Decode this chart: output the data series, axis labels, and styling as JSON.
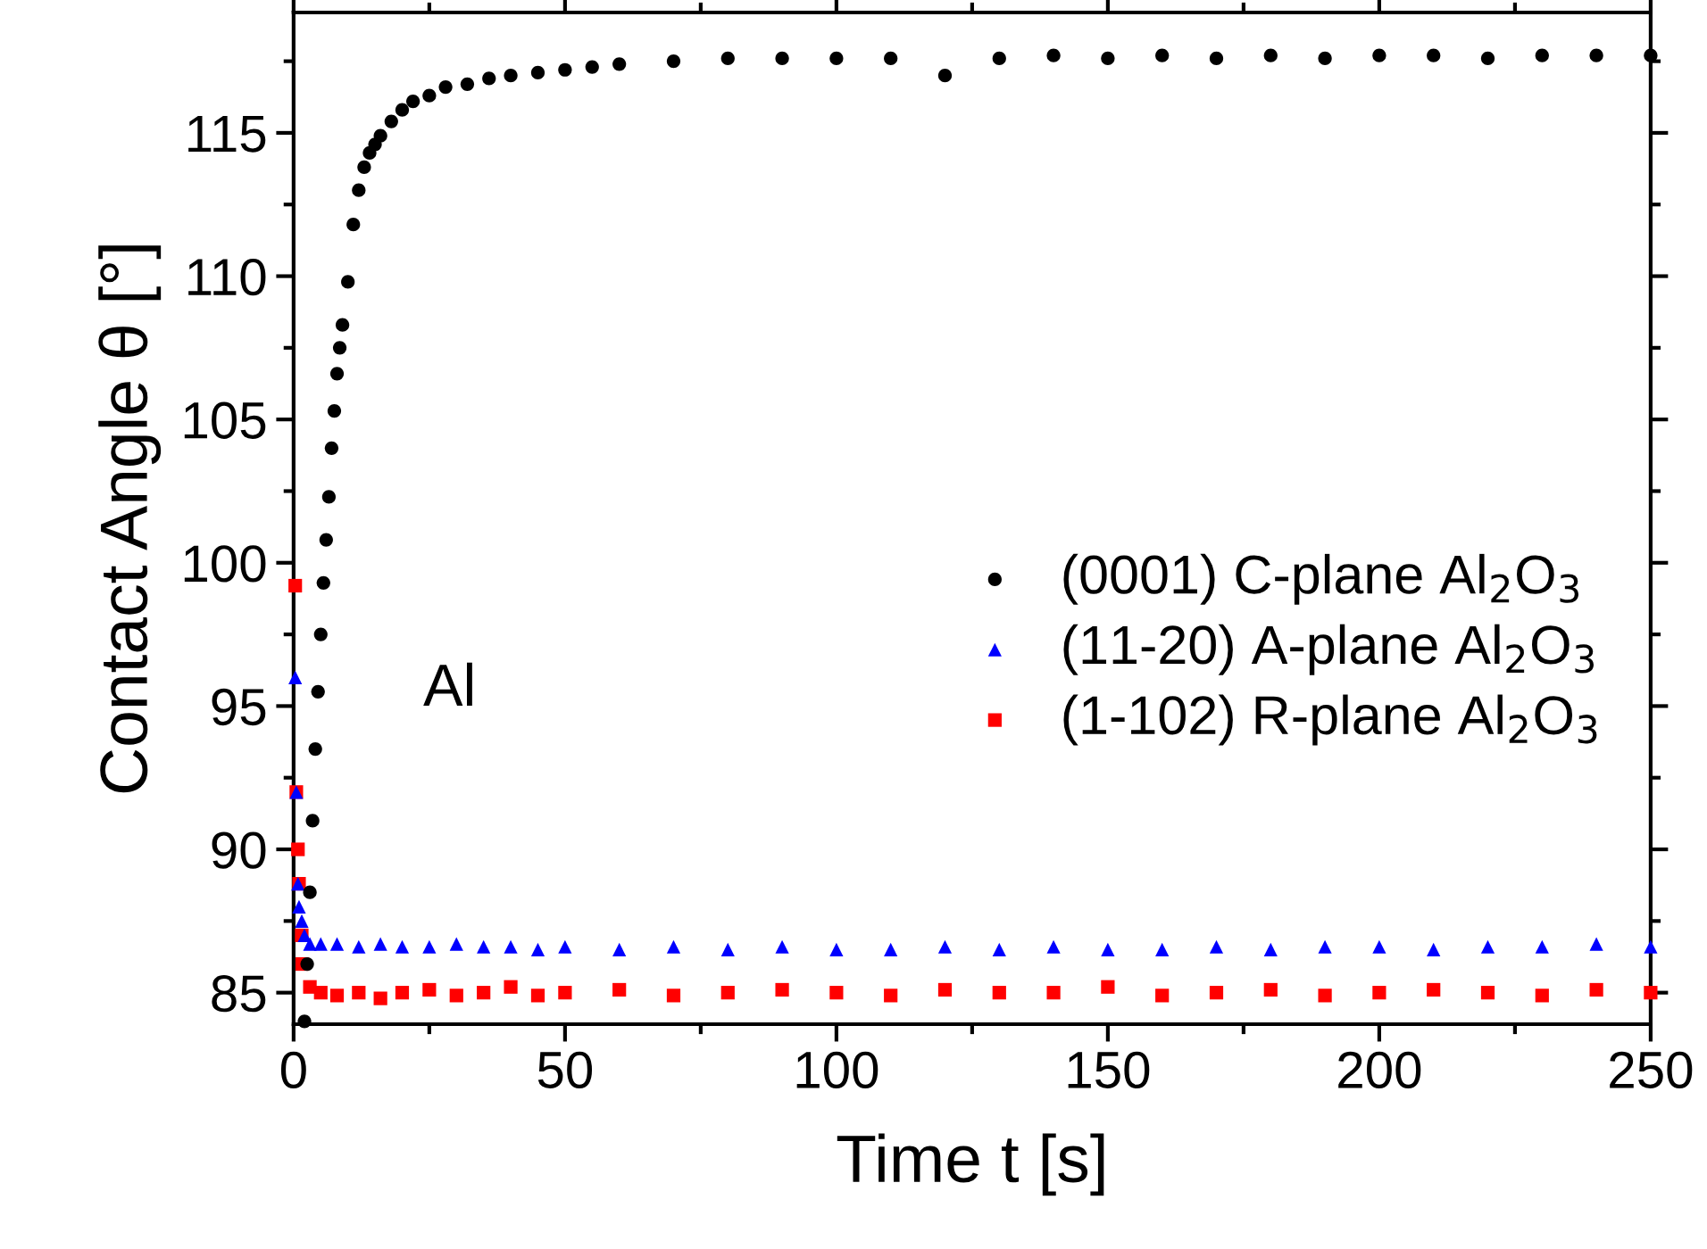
{
  "chart_data": {
    "type": "scatter",
    "xlabel": "Time t [s]",
    "ylabel": "Contact Angle θ [°]",
    "xlim": [
      0,
      250
    ],
    "ylim": [
      83.9,
      119.2
    ],
    "xticks": [
      0,
      50,
      100,
      150,
      200,
      250
    ],
    "yticks": [
      85,
      90,
      95,
      100,
      105,
      110,
      115
    ],
    "grid": false,
    "legend": "right",
    "annotations": [
      "Al"
    ],
    "series": [
      {
        "name": "(0001) C-plane Al$_{2}$O$_{3}$",
        "color": "#000000",
        "marker": "circle",
        "x": [
          2,
          2.5,
          3,
          3.5,
          4,
          4.5,
          5,
          5.5,
          6,
          6.5,
          7,
          7.5,
          8,
          8.5,
          9,
          10,
          11,
          12,
          13,
          14,
          15,
          16,
          18,
          20,
          22,
          25,
          28,
          32,
          36,
          40,
          45,
          50,
          55,
          60,
          70,
          80,
          90,
          100,
          110,
          120,
          130,
          140,
          150,
          160,
          170,
          180,
          190,
          200,
          210,
          220,
          230,
          240,
          250
        ],
        "values": [
          84.0,
          86,
          88.5,
          91,
          93.5,
          95.5,
          97.5,
          99.3,
          100.8,
          102.3,
          104,
          105.3,
          106.6,
          107.5,
          108.3,
          109.8,
          111.8,
          113,
          113.8,
          114.3,
          114.6,
          114.9,
          115.4,
          115.8,
          116.1,
          116.3,
          116.6,
          116.7,
          116.9,
          117,
          117.1,
          117.2,
          117.3,
          117.4,
          117.5,
          117.6,
          117.6,
          117.6,
          117.6,
          117.0,
          117.6,
          117.7,
          117.6,
          117.7,
          117.6,
          117.7,
          117.6,
          117.7,
          117.7,
          117.6,
          117.7,
          117.7,
          117.7
        ]
      },
      {
        "name": "(11-20) A-plane Al$_{2}$O$_{3}$",
        "color": "#0000ff",
        "marker": "triangle",
        "x": [
          0.3,
          0.5,
          0.8,
          1,
          1.5,
          2,
          3,
          5,
          8,
          12,
          16,
          20,
          25,
          30,
          35,
          40,
          45,
          50,
          60,
          70,
          80,
          90,
          100,
          110,
          120,
          130,
          140,
          150,
          160,
          170,
          180,
          190,
          200,
          210,
          220,
          230,
          240,
          250
        ],
        "values": [
          96,
          92,
          88.8,
          88,
          87.5,
          87,
          86.7,
          86.7,
          86.7,
          86.6,
          86.7,
          86.6,
          86.6,
          86.7,
          86.6,
          86.6,
          86.5,
          86.6,
          86.5,
          86.6,
          86.5,
          86.6,
          86.5,
          86.5,
          86.6,
          86.5,
          86.6,
          86.5,
          86.5,
          86.6,
          86.5,
          86.6,
          86.6,
          86.5,
          86.6,
          86.6,
          86.7,
          86.6
        ]
      },
      {
        "name": "(1-102) R-plane Al$_{2}$O$_{3}$",
        "color": "#ff0000",
        "marker": "square",
        "x": [
          0.3,
          0.5,
          0.8,
          1,
          1.5,
          1.6,
          3,
          5,
          8,
          12,
          16,
          20,
          25,
          30,
          35,
          40,
          45,
          50,
          60,
          70,
          80,
          90,
          100,
          110,
          120,
          130,
          140,
          150,
          160,
          170,
          180,
          190,
          200,
          210,
          220,
          230,
          240,
          250
        ],
        "values": [
          99.2,
          92,
          90,
          88.8,
          87,
          86,
          85.2,
          85.0,
          84.9,
          85.0,
          84.8,
          85.0,
          85.1,
          84.9,
          85.0,
          85.2,
          84.9,
          85.0,
          85.1,
          84.9,
          85.0,
          85.1,
          85.0,
          84.9,
          85.1,
          85.0,
          85.0,
          85.2,
          84.9,
          85.0,
          85.1,
          84.9,
          85.0,
          85.1,
          85.0,
          84.9,
          85.1,
          85.0
        ]
      }
    ]
  }
}
